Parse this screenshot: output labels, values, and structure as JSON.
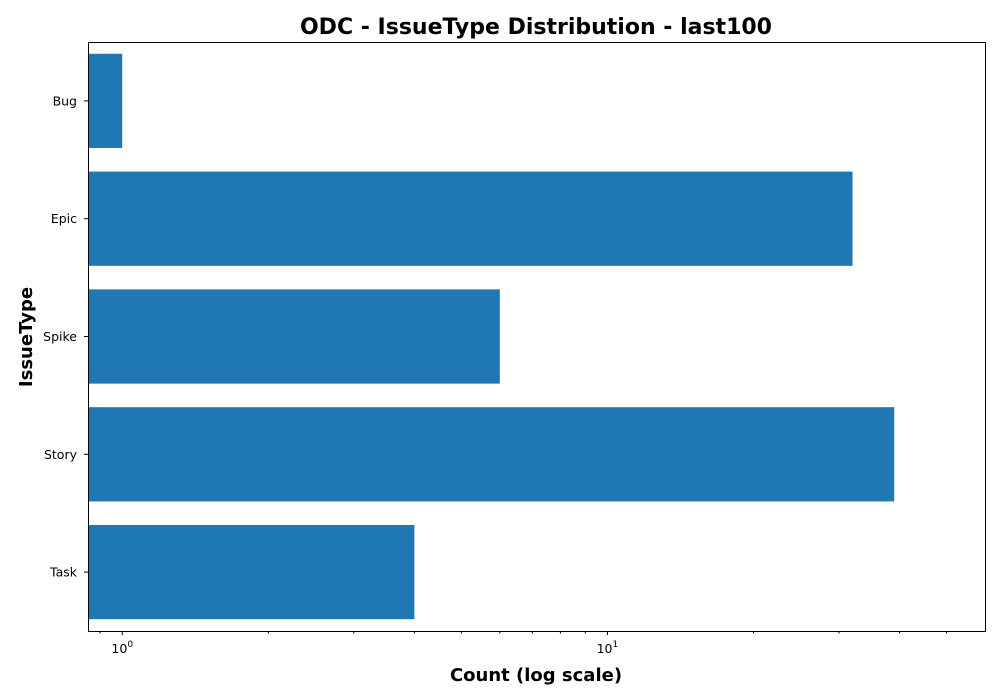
{
  "chart_data": {
    "type": "bar",
    "orientation": "horizontal",
    "title": "ODC - IssueType Distribution - last100",
    "xlabel": "Count (log scale)",
    "ylabel": "IssueType",
    "x_scale": "log",
    "xlim": [
      0.85,
      60
    ],
    "x_major_ticks": [
      {
        "value": 1,
        "base": "10",
        "exponent": "0"
      },
      {
        "value": 10,
        "base": "10",
        "exponent": "1"
      }
    ],
    "x_minor_ticks": [
      0.9,
      2,
      3,
      4,
      5,
      6,
      7,
      8,
      9,
      20,
      30,
      40,
      50
    ],
    "categories": [
      "Bug",
      "Epic",
      "Spike",
      "Story",
      "Task"
    ],
    "values": [
      1,
      32,
      6,
      39,
      4
    ],
    "bar_color": "#1f77b4",
    "grid": false,
    "legend": false
  }
}
